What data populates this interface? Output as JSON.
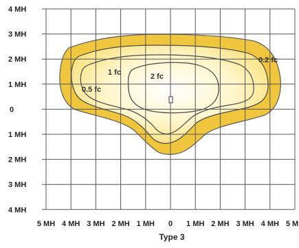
{
  "caption": "Type 3",
  "y_axis_labels": [
    "4 MH",
    "3 MH",
    "2 MH",
    "1 MH",
    "0",
    "1 MH",
    "2 MH",
    "3 MH",
    "4 MH"
  ],
  "x_axis_labels": [
    "5 MH",
    "4 MH",
    "3 MH",
    "2 MH",
    "1 MH",
    "0",
    "1 MH",
    "2 MH",
    "3 MH",
    "4 MH",
    "5 MH"
  ],
  "contours": [
    {
      "label": "0.2 fc",
      "fill": "#f2c53d",
      "stroke": "#4a4a4a"
    },
    {
      "label": "0.5 fc",
      "fill": "#f8e27a",
      "stroke": "#4a4a4a"
    },
    {
      "label": "1 fc",
      "fill": "#fcf0b6",
      "stroke": "#4a4a4a"
    },
    {
      "label": "2 fc",
      "fill": "#ffffff",
      "stroke": "#4a4a4a"
    }
  ],
  "colors": {
    "grid": "#555555",
    "background": "#ffffff"
  }
}
